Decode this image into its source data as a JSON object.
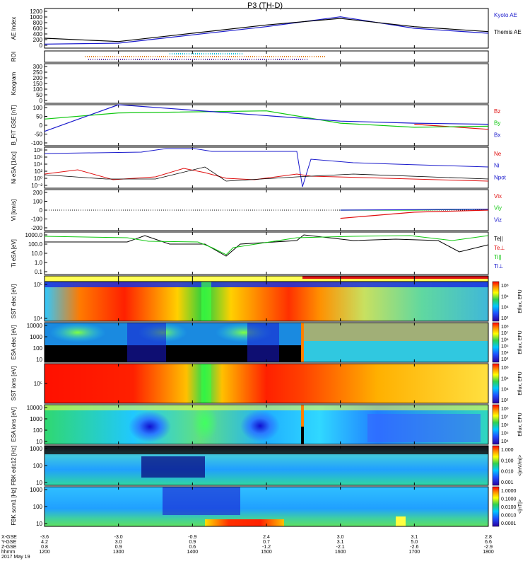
{
  "title": "P3 (TH-D)",
  "colors": {
    "blue": "#1a1acc",
    "red": "#e01010",
    "green": "#10c810",
    "black": "#000000",
    "orange": "#e07a00",
    "cyan": "#00bcd4",
    "violet": "#5a2ea0",
    "mode_yellow": "#ffff55",
    "mode_red": "#dd1111"
  },
  "panels": [
    {
      "id": "ae",
      "ylabel": "AE Index",
      "yticks": [
        "1200",
        "1000",
        "800",
        "600",
        "400",
        "200",
        "0"
      ],
      "legend": [
        {
          "text": "Kyoto AE",
          "color": "blue"
        },
        {
          "text": "Themis AE",
          "color": "black"
        }
      ]
    },
    {
      "id": "roi",
      "ylabel": "ROI",
      "yticks": [],
      "legend": []
    },
    {
      "id": "keogram",
      "ylabel": "Keogram",
      "yticks": [
        "300",
        "250",
        "200",
        "150",
        "100",
        "50",
        "0"
      ],
      "legend": []
    },
    {
      "id": "bfit",
      "ylabel": "B_FIT GSE [nT]",
      "yticks": [
        "100",
        "50",
        "0",
        "-50",
        "-100"
      ],
      "legend": [
        {
          "text": "Bz",
          "color": "red"
        },
        {
          "text": "By",
          "color": "green"
        },
        {
          "text": "Bx",
          "color": "blue"
        }
      ]
    },
    {
      "id": "ni",
      "ylabel": "Ni eSA [1/cc]",
      "yticks": [
        "10⁸",
        "10⁶",
        "10⁴",
        "10²",
        "10⁰",
        "10⁻²"
      ],
      "legend": [
        {
          "text": "Ne",
          "color": "red"
        },
        {
          "text": "Ni",
          "color": "blue"
        },
        {
          "text": "Npot",
          "color": "blue"
        }
      ]
    },
    {
      "id": "vi",
      "ylabel": "Vi [km/s]",
      "yticks": [
        "200",
        "100",
        "0",
        "-100",
        "-200"
      ],
      "legend": [
        {
          "text": "Vix",
          "color": "red"
        },
        {
          "text": "Viy",
          "color": "green"
        },
        {
          "text": "Viz",
          "color": "blue"
        }
      ]
    },
    {
      "id": "ti",
      "ylabel": "Ti eSA [eV]",
      "yticks": [
        "1000.0",
        "100.0",
        "10.0",
        "1.0",
        "0.1"
      ],
      "legend": [
        {
          "text": "Te||",
          "color": "black"
        },
        {
          "text": "Te⊥",
          "color": "red"
        },
        {
          "text": "Ti||",
          "color": "green"
        },
        {
          "text": "Ti⊥",
          "color": "blue"
        }
      ]
    },
    {
      "id": "mode",
      "ylabel": "",
      "yticks": [],
      "legend": []
    },
    {
      "id": "sst_e",
      "ylabel": "SST elec [eV]",
      "yticks": [
        "10⁵",
        "10⁴"
      ],
      "legend": []
    },
    {
      "id": "esa_e",
      "ylabel": "ESA elec [eV]",
      "yticks": [
        "10000",
        "1000",
        "100",
        "10"
      ],
      "legend": []
    },
    {
      "id": "sst_i",
      "ylabel": "SST ions [eV]",
      "yticks": [
        "10⁵"
      ],
      "legend": []
    },
    {
      "id": "esa_i",
      "ylabel": "ESA ions [eV]",
      "yticks": [
        "10000",
        "1000",
        "100",
        "10"
      ],
      "legend": []
    },
    {
      "id": "fbk_e",
      "ylabel": "FBK edc12 [Hz]",
      "yticks": [
        "1000",
        "100",
        "10"
      ],
      "legend": []
    },
    {
      "id": "fbk_b",
      "ylabel": "FBK scm1 [Hz]",
      "yticks": [
        "1000",
        "100",
        "10"
      ],
      "legend": []
    }
  ],
  "colorbars": [
    {
      "label": "Eflux, EFU",
      "ticks": [
        "10⁸",
        "10⁶",
        "10⁴",
        "10²"
      ]
    },
    {
      "label": "Eflux, EFU",
      "ticks": [
        "10⁸",
        "10⁷",
        "10⁶",
        "10⁵",
        "10⁴",
        "10³"
      ]
    },
    {
      "label": "Eflux, EFU",
      "ticks": [
        "10⁸",
        "10⁶",
        "10⁴",
        "10²"
      ]
    },
    {
      "label": "Eflux, EFU",
      "ticks": [
        "10⁸",
        "10⁷",
        "10⁶",
        "10⁵",
        "10⁴"
      ]
    },
    {
      "label": "<|mV/m|>",
      "ticks": [
        "1.000",
        "0.100",
        "0.010",
        "0.001"
      ]
    },
    {
      "label": "<|nT|>",
      "ticks": [
        "1.0000",
        "0.1000",
        "0.0100",
        "0.0010",
        "0.0001"
      ]
    }
  ],
  "xaxis": {
    "row_labels": [
      "X-GSE",
      "Y-GSE",
      "Z-GSE",
      "hhmm",
      "2017 May 19"
    ],
    "columns": [
      {
        "x": [
          "-3.6",
          "4.2",
          "0.8",
          "1200"
        ]
      },
      {
        "x": [
          "-3.0",
          "3.0",
          "0.9",
          "1300"
        ]
      },
      {
        "x": [
          "-0.9",
          "0.9",
          "0.6",
          "1400"
        ]
      },
      {
        "x": [
          "2.4",
          "0.7",
          "-1.2",
          "1500"
        ]
      },
      {
        "x": [
          "3.0",
          "3.1",
          "-2.1",
          "1600"
        ]
      },
      {
        "x": [
          "3.1",
          "5.0",
          "-2.6",
          "1700"
        ]
      },
      {
        "x": [
          "2.8",
          "6.6",
          "-2.9",
          "1800"
        ]
      }
    ]
  },
  "chart_data": [
    {
      "type": "line",
      "title": "AE Index",
      "x": [
        "1200",
        "1300",
        "1400",
        "1500",
        "1600",
        "1700",
        "1800"
      ],
      "series": [
        {
          "name": "Kyoto AE",
          "values": [
            120,
            150,
            400,
            650,
            950,
            600,
            450
          ]
        },
        {
          "name": "Themis AE",
          "values": [
            300,
            200,
            450,
            700,
            900,
            650,
            500
          ]
        }
      ],
      "ylim": [
        0,
        1200
      ]
    },
    {
      "type": "line",
      "title": "B_FIT GSE",
      "x": [
        "1200",
        "1300",
        "1400",
        "1500",
        "1600",
        "1700",
        "1800"
      ],
      "series": [
        {
          "name": "Bz",
          "values": [
            null,
            null,
            null,
            null,
            null,
            5,
            -20
          ]
        },
        {
          "name": "By",
          "values": [
            30,
            60,
            null,
            70,
            10,
            -10,
            -5
          ]
        },
        {
          "name": "Bx",
          "values": [
            -30,
            100,
            null,
            null,
            20,
            10,
            5
          ]
        }
      ],
      "ylim": [
        -100,
        100
      ]
    },
    {
      "type": "line",
      "title": "Vi",
      "x": [
        "1600",
        "1700",
        "1800"
      ],
      "series": [
        {
          "name": "Vix",
          "values": [
            -80,
            -20,
            0
          ]
        },
        {
          "name": "Viy",
          "values": [
            0,
            0,
            10
          ]
        },
        {
          "name": "Viz",
          "values": [
            0,
            5,
            10
          ]
        }
      ],
      "ylim": [
        -200,
        200
      ]
    }
  ]
}
